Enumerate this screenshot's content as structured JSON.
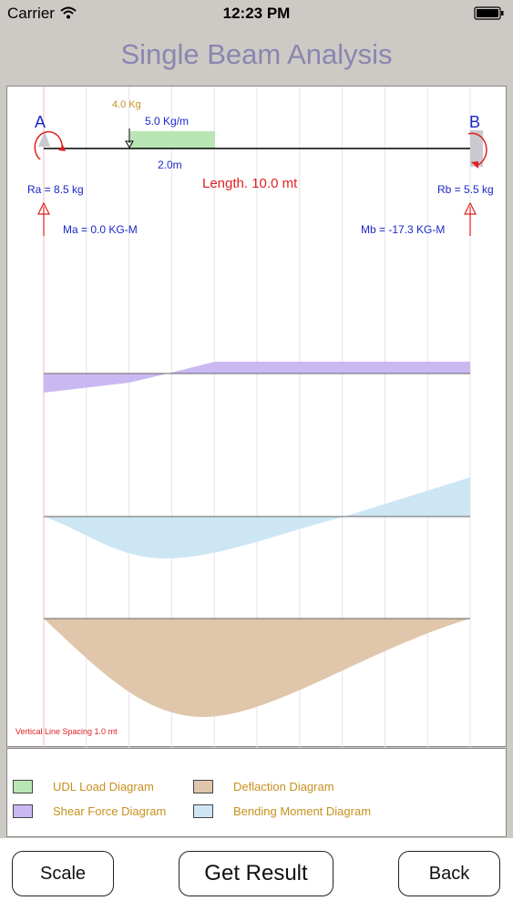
{
  "status": {
    "carrier": "Carrier",
    "time": "12:23 PM"
  },
  "title": "Single Beam Analysis",
  "beam": {
    "label_a": "A",
    "label_b": "B",
    "point_load": "4.0 Kg",
    "udl": "5.0 Kg/m",
    "udl_start": "2.0m",
    "length": "Length. 10.0 mt",
    "ra": "Ra = 8.5 kg",
    "rb": "Rb = 5.5 kg",
    "ma": "Ma = 0.0 KG-M",
    "mb": "Mb = -17.3 KG-M",
    "spacing_note": "Vertical Line Spacing 1.0 mt"
  },
  "colors": {
    "udl": "#b9e6b4",
    "shear": "#cab8f2",
    "moment": "#cde6f4",
    "deflection": "#e0c6ab",
    "support": "#c9c9cf",
    "red": "#e02020",
    "blue": "#1a28c8",
    "orange": "#c7901e"
  },
  "legend": [
    {
      "label": "UDL Load Diagram",
      "color": "#b9e6b4"
    },
    {
      "label": "Deflaction Diagram",
      "color": "#e0c6ab"
    },
    {
      "label": "Shear Force Diagram",
      "color": "#cab8f2"
    },
    {
      "label": "Bending Moment Diagram",
      "color": "#cde6f4"
    }
  ],
  "buttons": {
    "scale": "Scale",
    "result": "Get Result",
    "back": "Back"
  }
}
